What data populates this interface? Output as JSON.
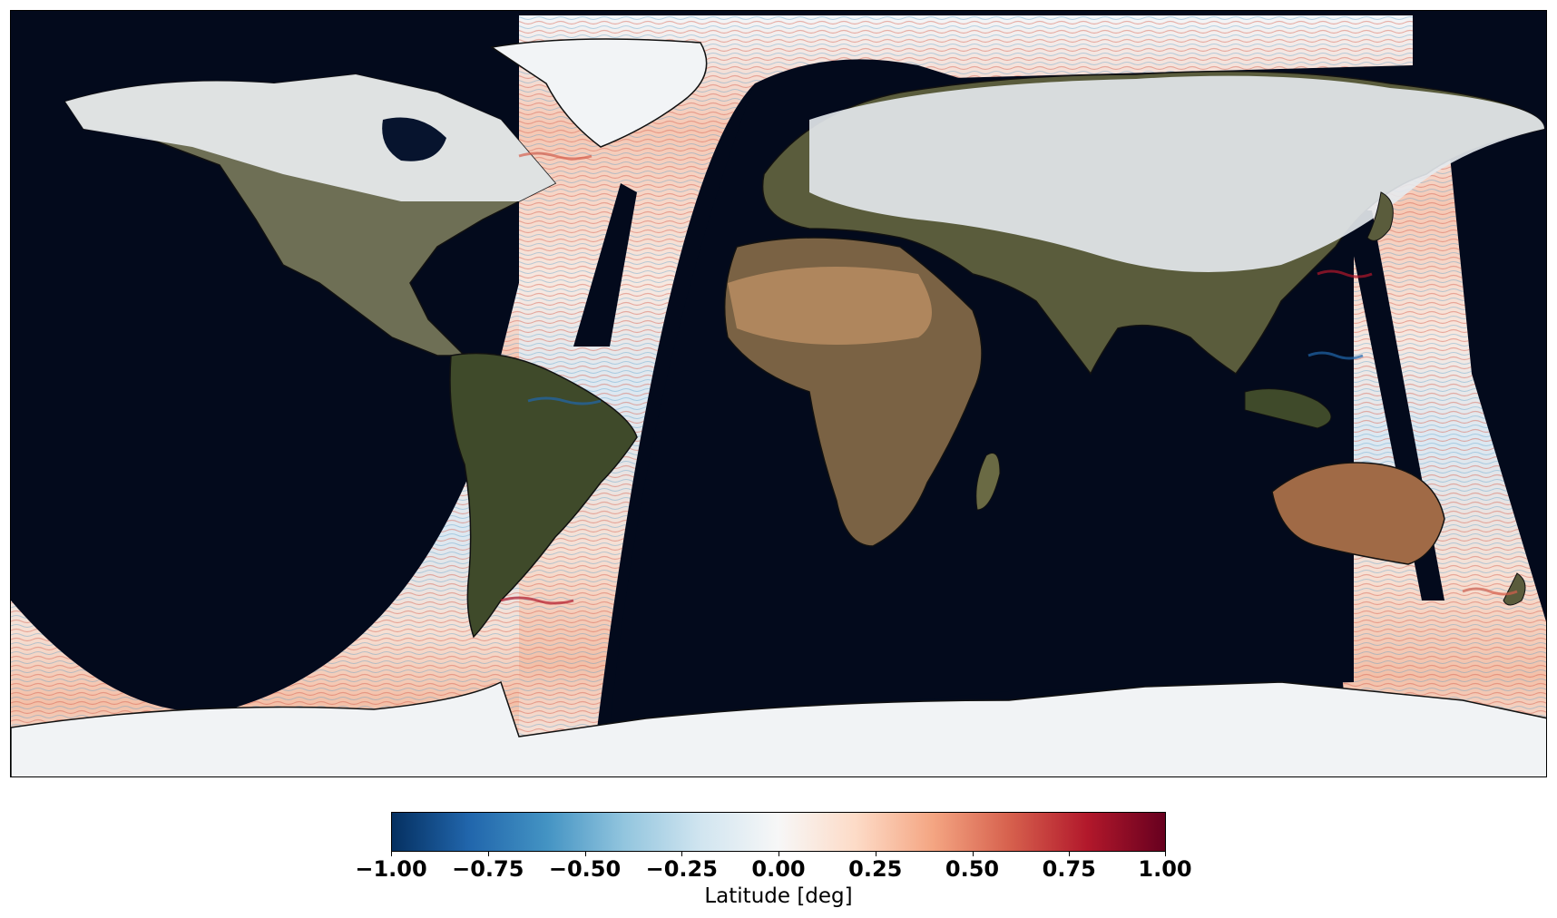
{
  "colorbar": {
    "label": "Latitude [deg]",
    "ticks": [
      "−1.00",
      "−0.75",
      "−0.50",
      "−0.25",
      "0.00",
      "0.25",
      "0.50",
      "0.75",
      "1.00"
    ],
    "range": [
      -1.0,
      1.0
    ],
    "colormap": "RdBu_r",
    "colors": [
      "#053061",
      "#2166ac",
      "#4393c3",
      "#92c5de",
      "#d1e5f0",
      "#f7f7f7",
      "#fddbc7",
      "#f4a582",
      "#d6604d",
      "#b2182b",
      "#67001f"
    ]
  },
  "map": {
    "projection": "equirectangular",
    "background": "nighttime Earth (blue marble) imagery",
    "overlay": "latitude difference swaths with coastlines"
  }
}
